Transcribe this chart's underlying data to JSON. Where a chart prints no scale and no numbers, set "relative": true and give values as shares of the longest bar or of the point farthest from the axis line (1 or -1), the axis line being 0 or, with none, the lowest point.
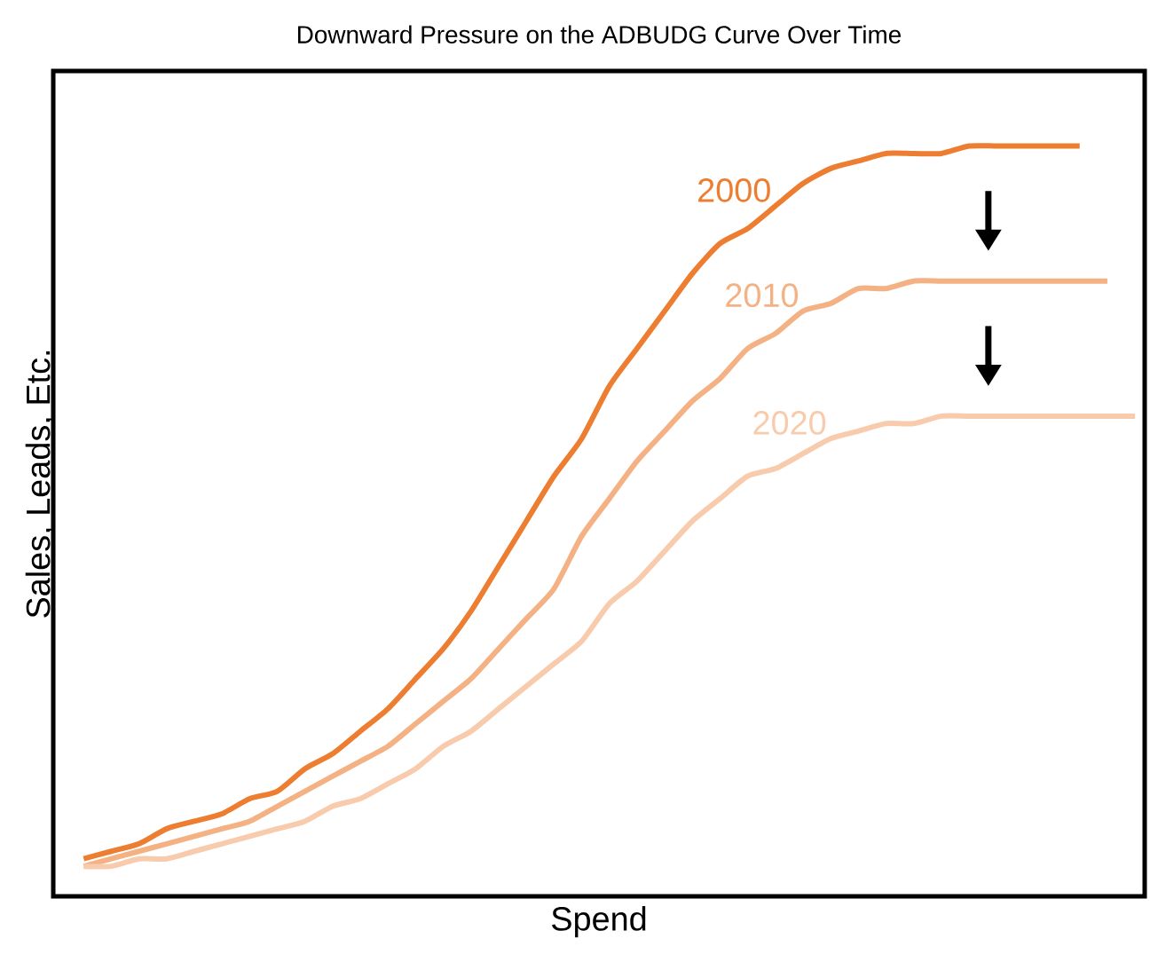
{
  "chart_data": {
    "type": "line",
    "title": "Downward Pressure on the ADBUDG Curve Over Time",
    "xlabel": "Spend",
    "ylabel": "Sales, Leads, Etc.",
    "relative": true,
    "categories": [
      null,
      null,
      null,
      null,
      null,
      null,
      null,
      null,
      null,
      null,
      null,
      null,
      null,
      null,
      null,
      null,
      null,
      null,
      null,
      null,
      null,
      null,
      null,
      null,
      null,
      null,
      null,
      null,
      null,
      null,
      null,
      null,
      null,
      null,
      null,
      null,
      null,
      null,
      null
    ],
    "series": [
      {
        "name": "2000",
        "color": "#ed7d31",
        "values": [
          0.05,
          0.06,
          0.07,
          0.09,
          0.1,
          0.11,
          0.13,
          0.14,
          0.17,
          0.19,
          0.22,
          0.25,
          0.29,
          0.33,
          0.38,
          0.44,
          0.5,
          0.56,
          0.61,
          0.68,
          0.73,
          0.78,
          0.83,
          0.87,
          0.89,
          0.92,
          0.95,
          0.97,
          0.98,
          0.99,
          0.99,
          0.99,
          1.0,
          1.0,
          1.0,
          1.0,
          1.0,
          null,
          null
        ]
      },
      {
        "name": "2010",
        "color": "#f4b183",
        "values": [
          0.04,
          0.05,
          0.06,
          0.07,
          0.08,
          0.09,
          0.1,
          0.12,
          0.14,
          0.16,
          0.18,
          0.2,
          0.23,
          0.26,
          0.29,
          0.33,
          0.37,
          0.41,
          0.48,
          0.53,
          0.58,
          0.62,
          0.66,
          0.69,
          0.73,
          0.75,
          0.78,
          0.79,
          0.81,
          0.81,
          0.82,
          0.82,
          0.82,
          0.82,
          0.82,
          0.82,
          0.82,
          0.82,
          null
        ]
      },
      {
        "name": "2020",
        "color": "#f8cbad",
        "values": [
          0.04,
          0.04,
          0.05,
          0.05,
          0.06,
          0.07,
          0.08,
          0.09,
          0.1,
          0.12,
          0.13,
          0.15,
          0.17,
          0.2,
          0.22,
          0.25,
          0.28,
          0.31,
          0.34,
          0.39,
          0.42,
          0.46,
          0.5,
          0.53,
          0.56,
          0.57,
          0.59,
          0.61,
          0.62,
          0.63,
          0.63,
          0.64,
          0.64,
          0.64,
          0.64,
          0.64,
          0.64,
          0.64,
          0.64
        ]
      }
    ]
  }
}
